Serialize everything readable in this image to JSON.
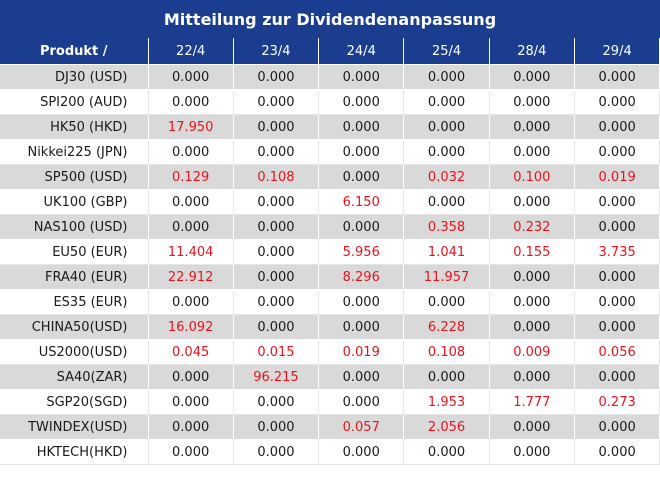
{
  "title": "Mitteilung zur Dividendenanpassung",
  "header": {
    "product_label": "Produkt /",
    "dates": [
      "22/4",
      "23/4",
      "24/4",
      "25/4",
      "28/4",
      "29/4"
    ]
  },
  "colors": {
    "header_bg": "#1b3d8f",
    "shaded_row": "#d9d9d9",
    "highlight_value": "#e8141c"
  },
  "rows": [
    {
      "product": "DJ30 (USD)",
      "values": [
        "0.000",
        "0.000",
        "0.000",
        "0.000",
        "0.000",
        "0.000"
      ],
      "red": [
        false,
        false,
        false,
        false,
        false,
        false
      ]
    },
    {
      "product": "SPI200 (AUD)",
      "values": [
        "0.000",
        "0.000",
        "0.000",
        "0.000",
        "0.000",
        "0.000"
      ],
      "red": [
        false,
        false,
        false,
        false,
        false,
        false
      ]
    },
    {
      "product": "HK50 (HKD)",
      "values": [
        "17.950",
        "0.000",
        "0.000",
        "0.000",
        "0.000",
        "0.000"
      ],
      "red": [
        true,
        false,
        false,
        false,
        false,
        false
      ]
    },
    {
      "product": "Nikkei225 (JPN)",
      "values": [
        "0.000",
        "0.000",
        "0.000",
        "0.000",
        "0.000",
        "0.000"
      ],
      "red": [
        false,
        false,
        false,
        false,
        false,
        false
      ]
    },
    {
      "product": "SP500 (USD)",
      "values": [
        "0.129",
        "0.108",
        "0.000",
        "0.032",
        "0.100",
        "0.019"
      ],
      "red": [
        true,
        true,
        false,
        true,
        true,
        true
      ]
    },
    {
      "product": "UK100 (GBP)",
      "values": [
        "0.000",
        "0.000",
        "6.150",
        "0.000",
        "0.000",
        "0.000"
      ],
      "red": [
        false,
        false,
        true,
        false,
        false,
        false
      ]
    },
    {
      "product": "NAS100 (USD)",
      "values": [
        "0.000",
        "0.000",
        "0.000",
        "0.358",
        "0.232",
        "0.000"
      ],
      "red": [
        false,
        false,
        false,
        true,
        true,
        false
      ]
    },
    {
      "product": "EU50 (EUR)",
      "values": [
        "11.404",
        "0.000",
        "5.956",
        "1.041",
        "0.155",
        "3.735"
      ],
      "red": [
        true,
        false,
        true,
        true,
        true,
        true
      ]
    },
    {
      "product": "FRA40 (EUR)",
      "values": [
        "22.912",
        "0.000",
        "8.296",
        "11.957",
        "0.000",
        "0.000"
      ],
      "red": [
        true,
        false,
        true,
        true,
        false,
        false
      ]
    },
    {
      "product": "ES35 (EUR)",
      "values": [
        "0.000",
        "0.000",
        "0.000",
        "0.000",
        "0.000",
        "0.000"
      ],
      "red": [
        false,
        false,
        false,
        false,
        false,
        false
      ]
    },
    {
      "product": "CHINA50(USD)",
      "values": [
        "16.092",
        "0.000",
        "0.000",
        "6.228",
        "0.000",
        "0.000"
      ],
      "red": [
        true,
        false,
        false,
        true,
        false,
        false
      ]
    },
    {
      "product": "US2000(USD)",
      "values": [
        "0.045",
        "0.015",
        "0.019",
        "0.108",
        "0.009",
        "0.056"
      ],
      "red": [
        true,
        true,
        true,
        true,
        true,
        true
      ]
    },
    {
      "product": "SA40(ZAR)",
      "values": [
        "0.000",
        "96.215",
        "0.000",
        "0.000",
        "0.000",
        "0.000"
      ],
      "red": [
        false,
        true,
        false,
        false,
        false,
        false
      ]
    },
    {
      "product": "SGP20(SGD)",
      "values": [
        "0.000",
        "0.000",
        "0.000",
        "1.953",
        "1.777",
        "0.273"
      ],
      "red": [
        false,
        false,
        false,
        true,
        true,
        true
      ]
    },
    {
      "product": "TWINDEX(USD)",
      "values": [
        "0.000",
        "0.000",
        "0.057",
        "2.056",
        "0.000",
        "0.000"
      ],
      "red": [
        false,
        false,
        true,
        true,
        false,
        false
      ]
    },
    {
      "product": "HKTECH(HKD)",
      "values": [
        "0.000",
        "0.000",
        "0.000",
        "0.000",
        "0.000",
        "0.000"
      ],
      "red": [
        false,
        false,
        false,
        false,
        false,
        false
      ]
    }
  ]
}
